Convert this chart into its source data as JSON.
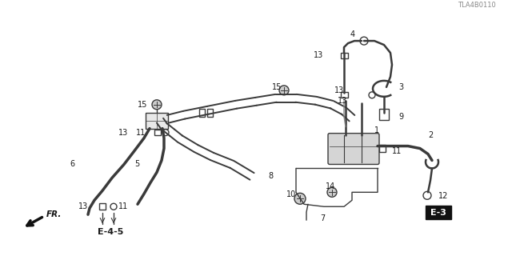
{
  "bg_color": "#ffffff",
  "line_color": "#3a3a3a",
  "label_color": "#1a1a1a",
  "part_code": "TLA4B0110",
  "ref_left": "E-4-5",
  "ref_right": "E-3",
  "fr_label": "FR."
}
